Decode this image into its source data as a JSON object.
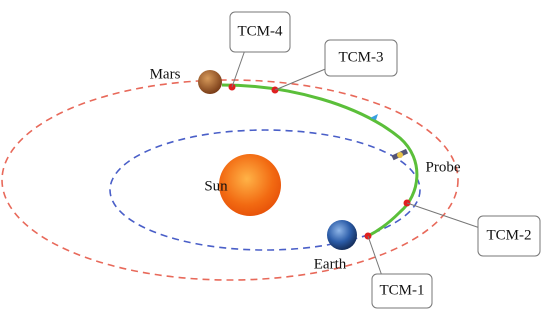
{
  "labels": {
    "mars": "Mars",
    "sun": "Sun",
    "earth": "Earth",
    "probe": "Probe"
  },
  "callouts": [
    "TCM-1",
    "TCM-2",
    "TCM-3",
    "TCM-4"
  ]
}
